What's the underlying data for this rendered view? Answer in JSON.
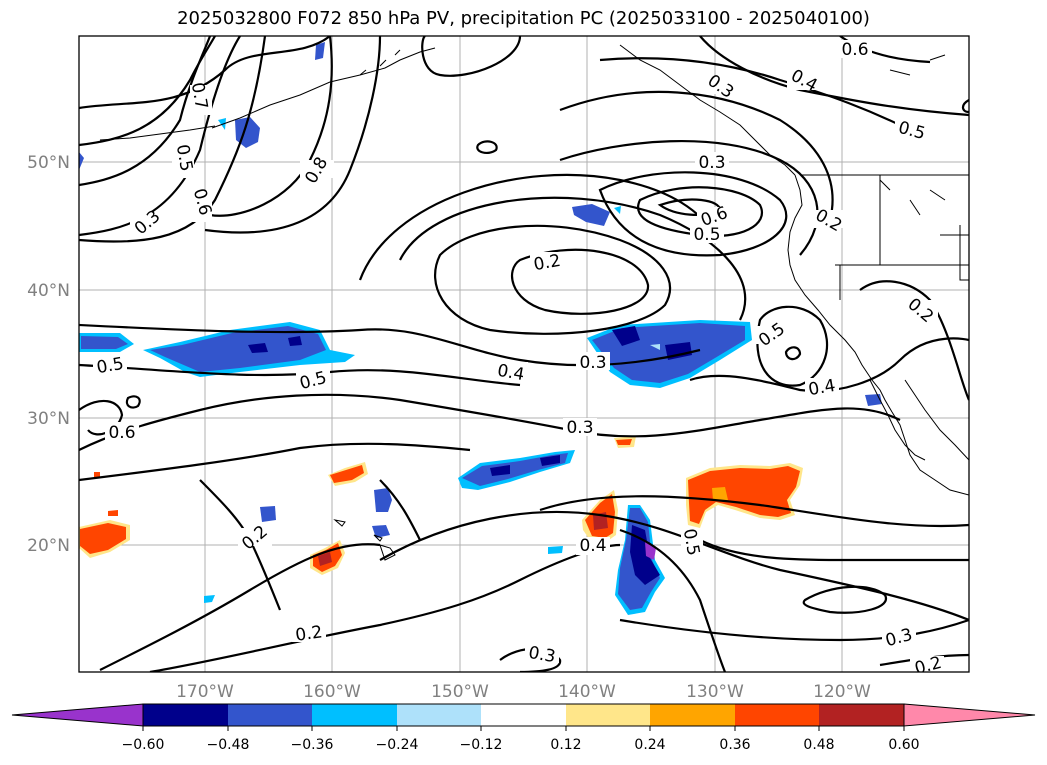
{
  "title": "2025032800 F072 850 hPa PV, precipitation PC (2025033100 - 2025040100)",
  "lat_labels": [
    "50°N",
    "40°N",
    "30°N",
    "20°N"
  ],
  "lon_labels": [
    "170°W",
    "160°W",
    "150°W",
    "140°W",
    "130°W",
    "120°W"
  ],
  "contour_labels": [
    "0.6",
    "0.4",
    "0.3",
    "0.5",
    "0.3",
    "0.2",
    "0.6",
    "0.5",
    "0.2",
    "0.2",
    "0.5",
    "0.4",
    "0.3",
    "0.4",
    "0.3",
    "0.5",
    "0.6",
    "0.2",
    "0.5",
    "0.4",
    "0.5",
    "0.3",
    "0.2",
    "0.3",
    "0.7",
    "0.5",
    "0.6",
    "0.8",
    "0.3",
    "0.2"
  ],
  "colorbar": {
    "tick_labels": [
      "−0.60",
      "−0.48",
      "−0.36",
      "−0.24",
      "−0.12",
      "0.12",
      "0.24",
      "0.36",
      "0.48",
      "0.60"
    ],
    "colors": [
      "#9933cc",
      "#00008b",
      "#3355cc",
      "#00bfff",
      "#aee1fa",
      "#ffffff",
      "#ffe68a",
      "#ffa500",
      "#ff4500",
      "#b22222",
      "#ff88aa"
    ]
  }
}
